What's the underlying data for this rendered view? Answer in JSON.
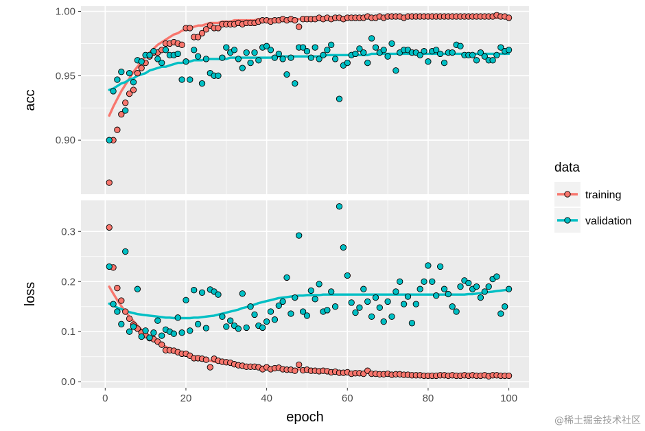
{
  "chart_data": {
    "type": "scatter",
    "xlabel": "epoch",
    "x_ticks": [
      0,
      20,
      40,
      60,
      80,
      100
    ],
    "xlim": [
      -6,
      105
    ],
    "legend": {
      "title": "data",
      "position": "right",
      "entries": [
        "training",
        "validation"
      ]
    },
    "colors": {
      "training": "#F8766D",
      "validation": "#00BFC4",
      "panel": "#EBEBEB",
      "grid": "#FFFFFF"
    },
    "panels": [
      {
        "ylabel": "acc",
        "ylim": [
          0.858,
          1.004
        ],
        "y_ticks": [
          0.9,
          0.95,
          1.0
        ],
        "y_tick_labels": [
          "0.90",
          "0.95",
          "1.00"
        ],
        "series": [
          {
            "name": "training",
            "values": [
              0.867,
              0.9,
              0.908,
              0.92,
              0.929,
              0.936,
              0.939,
              0.952,
              0.956,
              0.96,
              0.965,
              0.968,
              0.968,
              0.97,
              0.975,
              0.975,
              0.976,
              0.975,
              0.974,
              0.987,
              0.987,
              0.98,
              0.98,
              0.983,
              0.986,
              0.989,
              0.987,
              0.987,
              0.99,
              0.99,
              0.99,
              0.99,
              0.991,
              0.99,
              0.991,
              0.991,
              0.991,
              0.992,
              0.993,
              0.993,
              0.992,
              0.993,
              0.993,
              0.994,
              0.993,
              0.994,
              0.993,
              0.988,
              0.994,
              0.994,
              0.994,
              0.994,
              0.995,
              0.994,
              0.995,
              0.994,
              0.995,
              0.995,
              0.994,
              0.995,
              0.995,
              0.995,
              0.995,
              0.995,
              0.996,
              0.995,
              0.995,
              0.996,
              0.995,
              0.996,
              0.996,
              0.996,
              0.996,
              0.995,
              0.996,
              0.996,
              0.996,
              0.996,
              0.996,
              0.996,
              0.996,
              0.996,
              0.996,
              0.996,
              0.996,
              0.996,
              0.996,
              0.996,
              0.996,
              0.996,
              0.996,
              0.996,
              0.996,
              0.996,
              0.996,
              0.996,
              0.997,
              0.996,
              0.996,
              0.995
            ],
            "trend": [
              0.919,
              0.926,
              0.932,
              0.938,
              0.943,
              0.948,
              0.953,
              0.957,
              0.961,
              0.965,
              0.968,
              0.971,
              0.974,
              0.976,
              0.978,
              0.98,
              0.982,
              0.983,
              0.985,
              0.986,
              0.987,
              0.988,
              0.989,
              0.989,
              0.99,
              0.991,
              0.991,
              0.991,
              0.992,
              0.992,
              0.992,
              0.993,
              0.993,
              0.993,
              0.993,
              0.993,
              0.993,
              0.994,
              0.994,
              0.994,
              0.994,
              0.994,
              0.994,
              0.994,
              0.994,
              0.994,
              0.994,
              0.994,
              0.994,
              0.994,
              0.995,
              0.995,
              0.995,
              0.995,
              0.995,
              0.995,
              0.995,
              0.995,
              0.995,
              0.995,
              0.995,
              0.995,
              0.995,
              0.995,
              0.995,
              0.995,
              0.995,
              0.995,
              0.995,
              0.995,
              0.995,
              0.995,
              0.995,
              0.995,
              0.995,
              0.995,
              0.995,
              0.995,
              0.995,
              0.995,
              0.995,
              0.995,
              0.995,
              0.995,
              0.995,
              0.995,
              0.995,
              0.995,
              0.995,
              0.995,
              0.995,
              0.995,
              0.995,
              0.995,
              0.995,
              0.995,
              0.995,
              0.995,
              0.995,
              0.995
            ]
          },
          {
            "name": "validation",
            "values": [
              0.9,
              0.938,
              0.947,
              0.953,
              0.923,
              0.952,
              0.945,
              0.962,
              0.961,
              0.966,
              0.966,
              0.969,
              0.963,
              0.96,
              0.97,
              0.966,
              0.966,
              0.967,
              0.947,
              0.961,
              0.947,
              0.97,
              0.965,
              0.944,
              0.963,
              0.952,
              0.95,
              0.95,
              0.964,
              0.972,
              0.968,
              0.97,
              0.963,
              0.956,
              0.968,
              0.96,
              0.968,
              0.962,
              0.972,
              0.973,
              0.97,
              0.964,
              0.967,
              0.963,
              0.951,
              0.964,
              0.944,
              0.972,
              0.972,
              0.969,
              0.964,
              0.972,
              0.963,
              0.966,
              0.97,
              0.974,
              0.963,
              0.932,
              0.958,
              0.96,
              0.966,
              0.967,
              0.971,
              0.968,
              0.96,
              0.979,
              0.972,
              0.968,
              0.97,
              0.965,
              0.975,
              0.954,
              0.968,
              0.97,
              0.97,
              0.968,
              0.968,
              0.966,
              0.969,
              0.961,
              0.969,
              0.97,
              0.967,
              0.96,
              0.968,
              0.968,
              0.974,
              0.973,
              0.966,
              0.966,
              0.966,
              0.962,
              0.968,
              0.965,
              0.962,
              0.962,
              0.966,
              0.972,
              0.969,
              0.97
            ],
            "trend": [
              0.939,
              0.94,
              0.942,
              0.944,
              0.945,
              0.947,
              0.948,
              0.95,
              0.951,
              0.952,
              0.954,
              0.955,
              0.956,
              0.957,
              0.957,
              0.958,
              0.959,
              0.96,
              0.96,
              0.961,
              0.961,
              0.962,
              0.962,
              0.962,
              0.963,
              0.963,
              0.963,
              0.963,
              0.963,
              0.963,
              0.964,
              0.964,
              0.964,
              0.964,
              0.964,
              0.964,
              0.964,
              0.964,
              0.964,
              0.964,
              0.964,
              0.965,
              0.965,
              0.965,
              0.965,
              0.965,
              0.965,
              0.965,
              0.965,
              0.965,
              0.965,
              0.965,
              0.965,
              0.965,
              0.966,
              0.966,
              0.966,
              0.966,
              0.966,
              0.966,
              0.966,
              0.966,
              0.966,
              0.966,
              0.966,
              0.967,
              0.967,
              0.967,
              0.967,
              0.967,
              0.967,
              0.967,
              0.967,
              0.967,
              0.967,
              0.967,
              0.967,
              0.967,
              0.967,
              0.967,
              0.967,
              0.967,
              0.967,
              0.967,
              0.967,
              0.967,
              0.967,
              0.967,
              0.967,
              0.967,
              0.967,
              0.967,
              0.967,
              0.967,
              0.967,
              0.967,
              0.967,
              0.967,
              0.967,
              0.967
            ]
          }
        ]
      },
      {
        "ylabel": "loss",
        "ylim": [
          -0.012,
          0.362
        ],
        "y_ticks": [
          0.0,
          0.1,
          0.2,
          0.3
        ],
        "y_tick_labels": [
          "0.0",
          "0.1",
          "0.2",
          "0.3"
        ],
        "series": [
          {
            "name": "training",
            "values": [
              0.308,
              0.228,
              0.187,
              0.162,
              0.14,
              0.126,
              0.114,
              0.106,
              0.098,
              0.093,
              0.087,
              0.085,
              0.08,
              0.074,
              0.063,
              0.063,
              0.062,
              0.059,
              0.056,
              0.056,
              0.052,
              0.047,
              0.047,
              0.046,
              0.044,
              0.029,
              0.046,
              0.042,
              0.04,
              0.039,
              0.038,
              0.035,
              0.033,
              0.032,
              0.03,
              0.03,
              0.03,
              0.029,
              0.025,
              0.029,
              0.025,
              0.027,
              0.028,
              0.025,
              0.024,
              0.024,
              0.022,
              0.034,
              0.023,
              0.024,
              0.022,
              0.022,
              0.021,
              0.022,
              0.021,
              0.019,
              0.02,
              0.018,
              0.018,
              0.019,
              0.016,
              0.017,
              0.017,
              0.016,
              0.022,
              0.016,
              0.016,
              0.015,
              0.015,
              0.016,
              0.014,
              0.015,
              0.015,
              0.014,
              0.014,
              0.013,
              0.013,
              0.013,
              0.012,
              0.012,
              0.012,
              0.012,
              0.013,
              0.013,
              0.012,
              0.013,
              0.012,
              0.012,
              0.013,
              0.012,
              0.013,
              0.012,
              0.012,
              0.013,
              0.011,
              0.013,
              0.013,
              0.012,
              0.012,
              0.012
            ],
            "trend": [
              0.19,
              0.176,
              0.163,
              0.151,
              0.14,
              0.13,
              0.121,
              0.112,
              0.104,
              0.097,
              0.09,
              0.084,
              0.079,
              0.074,
              0.07,
              0.066,
              0.062,
              0.059,
              0.056,
              0.053,
              0.051,
              0.049,
              0.047,
              0.045,
              0.043,
              0.042,
              0.04,
              0.039,
              0.038,
              0.037,
              0.036,
              0.035,
              0.034,
              0.033,
              0.032,
              0.032,
              0.031,
              0.03,
              0.03,
              0.029,
              0.028,
              0.028,
              0.027,
              0.027,
              0.026,
              0.026,
              0.025,
              0.025,
              0.024,
              0.024,
              0.023,
              0.023,
              0.022,
              0.022,
              0.021,
              0.021,
              0.021,
              0.02,
              0.02,
              0.019,
              0.019,
              0.019,
              0.018,
              0.018,
              0.018,
              0.017,
              0.017,
              0.017,
              0.016,
              0.016,
              0.016,
              0.016,
              0.015,
              0.015,
              0.015,
              0.015,
              0.015,
              0.014,
              0.014,
              0.014,
              0.014,
              0.014,
              0.014,
              0.014,
              0.014,
              0.014,
              0.014,
              0.014,
              0.014,
              0.014,
              0.014,
              0.014,
              0.014,
              0.014,
              0.014,
              0.014,
              0.014,
              0.014,
              0.014,
              0.014
            ]
          },
          {
            "name": "validation",
            "values": [
              0.23,
              0.155,
              0.14,
              0.115,
              0.26,
              0.1,
              0.11,
              0.185,
              0.09,
              0.102,
              0.088,
              0.098,
              0.122,
              0.092,
              0.104,
              0.1,
              0.096,
              0.128,
              0.098,
              0.163,
              0.102,
              0.183,
              0.115,
              0.178,
              0.107,
              0.184,
              0.18,
              0.174,
              0.13,
              0.11,
              0.122,
              0.112,
              0.106,
              0.176,
              0.108,
              0.15,
              0.134,
              0.112,
              0.108,
              0.12,
              0.14,
              0.124,
              0.152,
              0.16,
              0.208,
              0.136,
              0.168,
              0.292,
              0.14,
              0.132,
              0.182,
              0.165,
              0.195,
              0.14,
              0.143,
              0.18,
              0.15,
              0.35,
              0.268,
              0.212,
              0.158,
              0.138,
              0.148,
              0.185,
              0.16,
              0.13,
              0.168,
              0.148,
              0.12,
              0.16,
              0.13,
              0.18,
              0.2,
              0.155,
              0.17,
              0.117,
              0.155,
              0.185,
              0.2,
              0.232,
              0.2,
              0.172,
              0.23,
              0.185,
              0.175,
              0.15,
              0.14,
              0.19,
              0.202,
              0.197,
              0.185,
              0.19,
              0.168,
              0.18,
              0.19,
              0.205,
              0.21,
              0.136,
              0.15,
              0.185
            ],
            "trend": [
              0.156,
              0.152,
              0.148,
              0.145,
              0.142,
              0.139,
              0.137,
              0.135,
              0.134,
              0.133,
              0.132,
              0.131,
              0.13,
              0.129,
              0.128,
              0.128,
              0.127,
              0.127,
              0.127,
              0.127,
              0.127,
              0.128,
              0.128,
              0.129,
              0.13,
              0.131,
              0.132,
              0.134,
              0.136,
              0.138,
              0.14,
              0.142,
              0.144,
              0.147,
              0.149,
              0.152,
              0.154,
              0.157,
              0.159,
              0.161,
              0.163,
              0.165,
              0.167,
              0.168,
              0.169,
              0.17,
              0.171,
              0.172,
              0.172,
              0.173,
              0.173,
              0.173,
              0.173,
              0.174,
              0.174,
              0.174,
              0.174,
              0.174,
              0.174,
              0.174,
              0.174,
              0.174,
              0.174,
              0.174,
              0.174,
              0.174,
              0.174,
              0.174,
              0.174,
              0.174,
              0.174,
              0.174,
              0.174,
              0.174,
              0.174,
              0.174,
              0.174,
              0.174,
              0.174,
              0.174,
              0.174,
              0.174,
              0.174,
              0.174,
              0.174,
              0.174,
              0.174,
              0.174,
              0.174,
              0.175,
              0.175,
              0.176,
              0.177,
              0.178,
              0.179,
              0.18,
              0.181,
              0.182,
              0.183,
              0.184
            ]
          }
        ]
      }
    ]
  },
  "watermark": "@稀土掘金技术社区"
}
